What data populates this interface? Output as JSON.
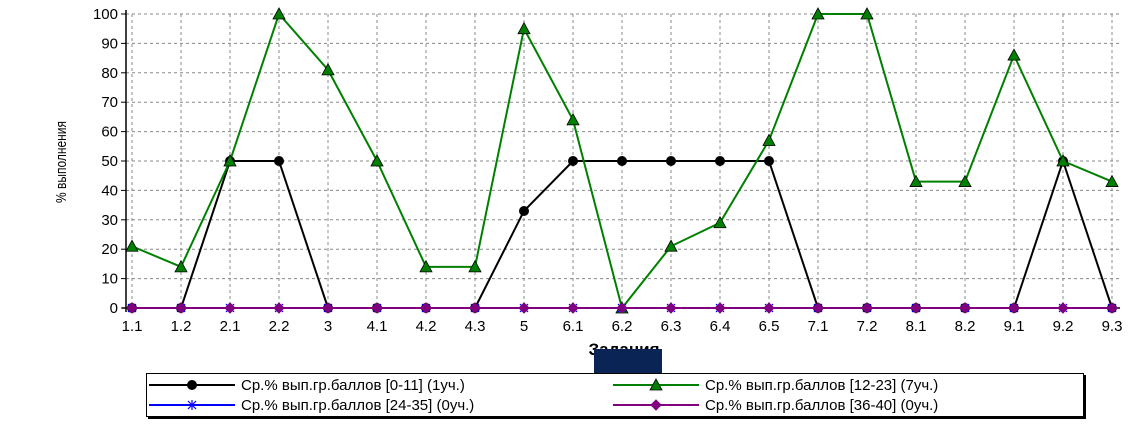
{
  "chart_data": {
    "type": "line",
    "title": "",
    "xlabel": "Задания",
    "ylabel": "% выполнения",
    "ylim": [
      0,
      100
    ],
    "yticks": [
      0,
      10,
      20,
      30,
      40,
      50,
      60,
      70,
      80,
      90,
      100
    ],
    "grid": true,
    "legend_position": "bottom",
    "categories": [
      "1.1",
      "1.2",
      "2.1",
      "2.2",
      "3",
      "4.1",
      "4.2",
      "4.3",
      "5",
      "6.1",
      "6.2",
      "6.3",
      "6.4",
      "6.5",
      "7.1",
      "7.2",
      "8.1",
      "8.2",
      "9.1",
      "9.2",
      "9.3"
    ],
    "series": [
      {
        "name": "Ср.% вып.гр.баллов [0-11] (1уч.)",
        "color": "#000000",
        "marker": "circle",
        "values": [
          0,
          0,
          50,
          50,
          0,
          0,
          0,
          0,
          33,
          50,
          50,
          50,
          50,
          50,
          0,
          0,
          0,
          0,
          0,
          50,
          0
        ]
      },
      {
        "name": "Ср.% вып.гр.баллов [12-23] (7уч.)",
        "color": "#008000",
        "marker": "triangle",
        "values": [
          21,
          14,
          50,
          100,
          81,
          50,
          14,
          14,
          95,
          64,
          0,
          21,
          29,
          57,
          100,
          100,
          43,
          43,
          86,
          50,
          43
        ]
      },
      {
        "name": "Ср.% вып.гр.баллов [24-35] (0уч.)",
        "color": "#0000ff",
        "marker": "star",
        "values": [
          0,
          0,
          0,
          0,
          0,
          0,
          0,
          0,
          0,
          0,
          0,
          0,
          0,
          0,
          0,
          0,
          0,
          0,
          0,
          0,
          0
        ]
      },
      {
        "name": "Ср.% вып.гр.баллов [36-40] (0уч.)",
        "color": "#800080",
        "marker": "diamond",
        "values": [
          0,
          0,
          0,
          0,
          0,
          0,
          0,
          0,
          0,
          0,
          0,
          0,
          0,
          0,
          0,
          0,
          0,
          0,
          0,
          0,
          0
        ]
      }
    ]
  }
}
